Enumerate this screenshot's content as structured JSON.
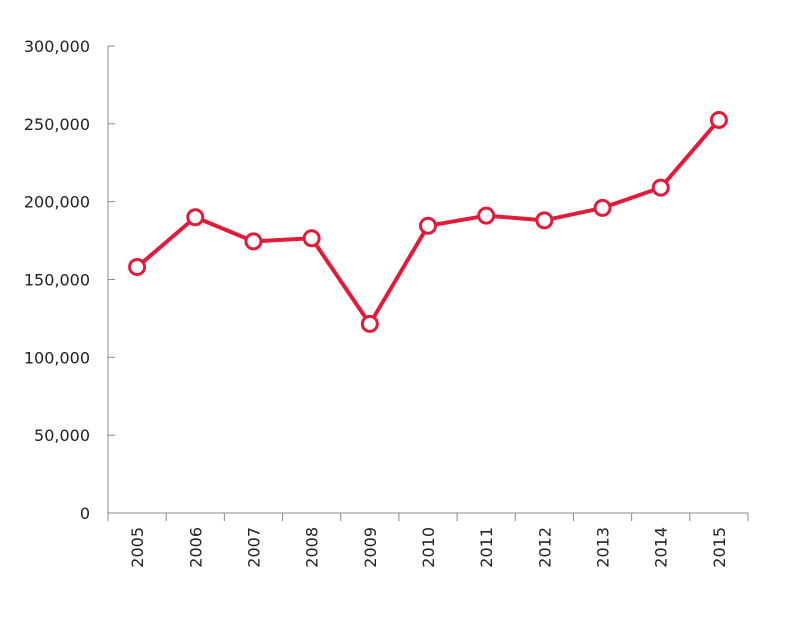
{
  "chart_data": {
    "type": "line",
    "title": "",
    "xlabel": "",
    "ylabel": "",
    "categories": [
      "2005",
      "2006",
      "2007",
      "2008",
      "2009",
      "2010",
      "2011",
      "2012",
      "2013",
      "2014",
      "2015"
    ],
    "series": [
      {
        "values": [
          158000,
          190000,
          174500,
          176500,
          121500,
          184500,
          191000,
          188000,
          196000,
          209000,
          252500
        ],
        "color": "#e31b3b"
      }
    ],
    "ylim": [
      0,
      300000
    ],
    "yticks": [
      0,
      50000,
      100000,
      150000,
      200000,
      250000,
      300000
    ],
    "ytick_labels": [
      "0",
      "50,000",
      "100,000",
      "150,000",
      "200,000",
      "250,000",
      "300,000"
    ],
    "grid": false,
    "marker": "hollow-circle",
    "axis_color": "#888888"
  }
}
